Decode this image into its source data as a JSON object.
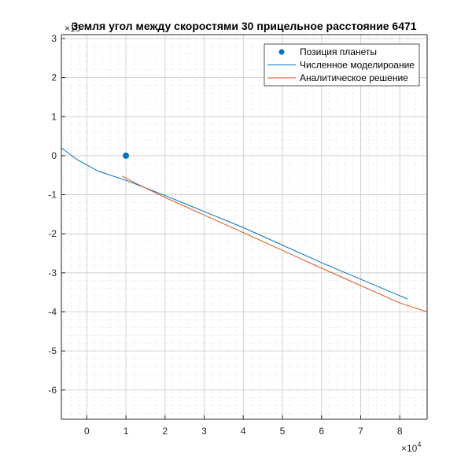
{
  "chart_data": {
    "type": "line",
    "title": "Земля угол между скоростями 30 прицельное расстояние 6471",
    "x_exponent_label": "×10",
    "x_exponent_power": "4",
    "y_exponent_label": "×10",
    "x_scale_factor": 10000,
    "y_scale_factor": 10000,
    "xlim": [
      -0.65,
      8.7
    ],
    "ylim": [
      -6.75,
      3.1
    ],
    "xticks": [
      0,
      1,
      2,
      3,
      4,
      5,
      6,
      7,
      8
    ],
    "yticks": [
      3,
      2,
      1,
      0,
      -1,
      -2,
      -3,
      -4,
      -5,
      -6
    ],
    "x_tick_labels": [
      "0",
      "1",
      "2",
      "3",
      "4",
      "5",
      "6",
      "7",
      "8"
    ],
    "y_tick_labels": [
      "3",
      "2",
      "1",
      "0",
      "-1",
      "-2",
      "-3",
      "-4",
      "-5",
      "-6"
    ],
    "grid": "on",
    "minor_grid": "on",
    "legend_position": "top-right",
    "series": [
      {
        "name": "Позиция планеты",
        "kind": "marker",
        "color": "#0072BD",
        "points": [
          [
            1.0,
            0.0
          ]
        ]
      },
      {
        "name": "Численное моделироание",
        "kind": "line",
        "color": "#0072BD",
        "points": [
          [
            -0.65,
            0.2
          ],
          [
            -0.25,
            -0.1
          ],
          [
            0.3,
            -0.4
          ],
          [
            1.0,
            -0.63
          ],
          [
            2.0,
            -1.02
          ],
          [
            4.0,
            -1.84
          ],
          [
            6.0,
            -2.74
          ],
          [
            8.2,
            -3.67
          ]
        ]
      },
      {
        "name": "Аналитическое решение",
        "kind": "line",
        "color": "#D95319",
        "points": [
          [
            0.9,
            -0.52
          ],
          [
            1.2,
            -0.68
          ],
          [
            2.0,
            -1.07
          ],
          [
            4.0,
            -1.97
          ],
          [
            6.0,
            -2.88
          ],
          [
            8.0,
            -3.77
          ],
          [
            8.7,
            -4.0
          ]
        ]
      }
    ]
  }
}
